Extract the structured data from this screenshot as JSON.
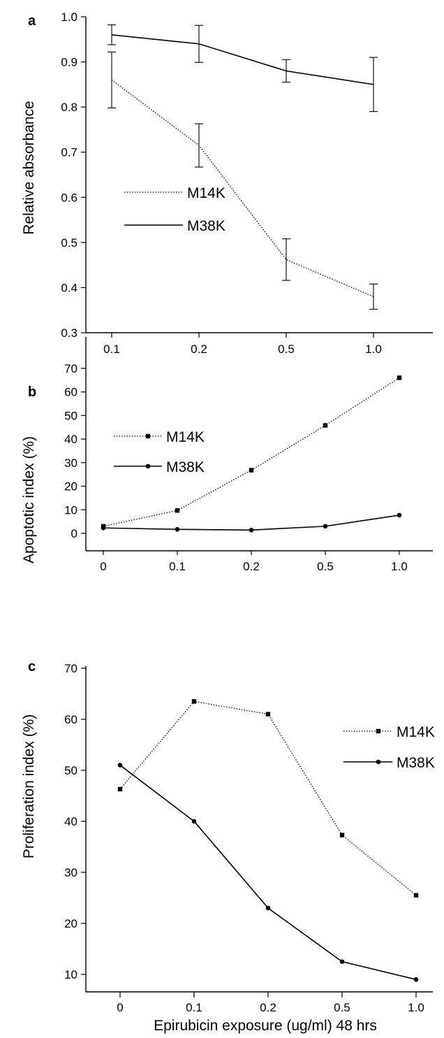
{
  "xlabel": "Epirubicin exposure (ug/ml) 48 hrs",
  "chart_data": [
    {
      "panel": "a",
      "type": "line",
      "ylabel": "Relative absorbance",
      "categories": [
        "0.1",
        "0.2",
        "0.5",
        "1.0"
      ],
      "ylim": [
        0.3,
        1.0
      ],
      "yticks": [
        "0.3",
        "0.4",
        "0.5",
        "0.6",
        "0.7",
        "0.8",
        "0.9",
        "1.0"
      ],
      "legend_position": "center-left",
      "series": [
        {
          "name": "M14K",
          "style": "dotted",
          "marker": "none",
          "values": [
            0.86,
            0.715,
            0.462,
            0.38
          ],
          "errors": [
            0.062,
            0.048,
            0.046,
            0.028
          ]
        },
        {
          "name": "M38K",
          "style": "solid",
          "marker": "none",
          "values": [
            0.96,
            0.94,
            0.88,
            0.85
          ],
          "errors": [
            0.022,
            0.041,
            0.025,
            0.06
          ]
        }
      ]
    },
    {
      "panel": "b",
      "type": "line",
      "ylabel": "Apoptotic index (%)",
      "categories": [
        "0",
        "0.1",
        "0.2",
        "0.5",
        "1.0"
      ],
      "ylim": [
        -5,
        75
      ],
      "yticks": [
        "0",
        "10",
        "20",
        "30",
        "40",
        "50",
        "60",
        "70"
      ],
      "legend_position": "top-left",
      "series": [
        {
          "name": "M14K",
          "style": "dotted",
          "marker": "square",
          "values": [
            3,
            9.7,
            26.8,
            45.8,
            66
          ]
        },
        {
          "name": "M38K",
          "style": "solid",
          "marker": "circle",
          "values": [
            2.3,
            1.7,
            1.4,
            3,
            7.7
          ]
        }
      ]
    },
    {
      "panel": "c",
      "type": "line",
      "ylabel": "Proliferation index (%)",
      "categories": [
        "0",
        "0.1",
        "0.2",
        "0.5",
        "1.0"
      ],
      "ylim": [
        5,
        70
      ],
      "yticks": [
        "10",
        "20",
        "30",
        "40",
        "50",
        "60",
        "70"
      ],
      "legend_position": "top-right",
      "series": [
        {
          "name": "M14K",
          "style": "dotted",
          "marker": "square",
          "values": [
            46.3,
            63.5,
            61,
            37.3,
            25.5
          ]
        },
        {
          "name": "M38K",
          "style": "solid",
          "marker": "circle",
          "values": [
            51,
            40,
            23,
            12.5,
            9
          ]
        }
      ]
    }
  ]
}
